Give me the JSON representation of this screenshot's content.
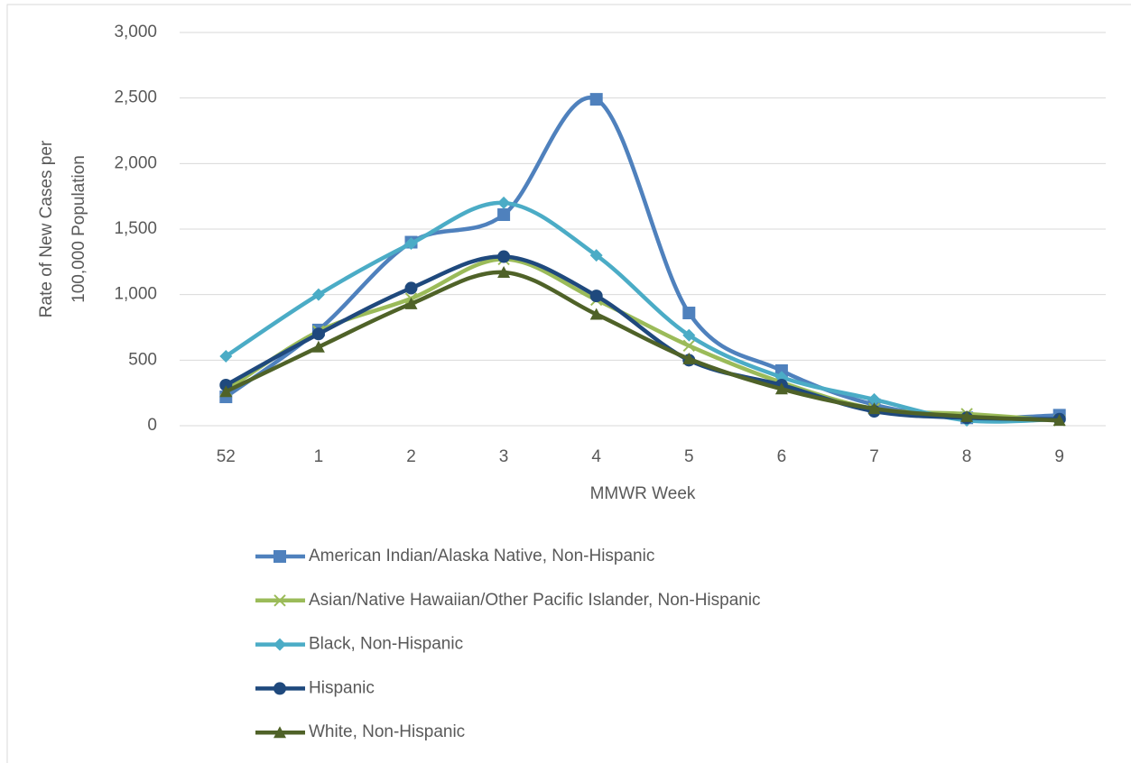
{
  "chart_data": {
    "type": "line",
    "smooth": true,
    "y_label": [
      "Rate of New Cases per",
      "100,000 Population"
    ],
    "x_label": "MMWR Week",
    "categories": [
      "52",
      "1",
      "2",
      "3",
      "4",
      "5",
      "6",
      "7",
      "8",
      "9"
    ],
    "ylim": [
      0,
      3000
    ],
    "yticks": [
      0,
      500,
      {
        "value": 1000,
        "label": "1,000"
      },
      {
        "value": 1500,
        "label": "1,500"
      },
      {
        "value": 2000,
        "label": "2,000"
      },
      {
        "value": 2500,
        "label": "2,500"
      },
      {
        "value": 3000,
        "label": "3,000"
      }
    ],
    "grid": true,
    "legend": "bottom",
    "series": [
      {
        "name": "American Indian/Alaska Native, Non-Hispanic",
        "color": "#4f81bd",
        "marker": "square",
        "values": [
          220,
          730,
          1400,
          1610,
          2490,
          860,
          420,
          160,
          60,
          80
        ]
      },
      {
        "name": "Asian/Native Hawaiian/Other Pacific Islander, Non-Hispanic",
        "color": "#9bbb59",
        "marker": "x",
        "values": [
          270,
          720,
          970,
          1270,
          960,
          610,
          330,
          130,
          90,
          40
        ]
      },
      {
        "name": "Black, Non-Hispanic",
        "color": "#4bacc6",
        "marker": "diamond",
        "values": [
          530,
          1000,
          1390,
          1700,
          1300,
          690,
          370,
          200,
          40,
          50
        ]
      },
      {
        "name": "Hispanic",
        "color": "#1f497d",
        "marker": "circle",
        "values": [
          310,
          700,
          1050,
          1290,
          990,
          500,
          310,
          110,
          60,
          50
        ]
      },
      {
        "name": "White, Non-Hispanic",
        "color": "#4f6228",
        "marker": "triangle",
        "values": [
          260,
          600,
          930,
          1170,
          850,
          510,
          280,
          130,
          70,
          40
        ]
      }
    ]
  }
}
